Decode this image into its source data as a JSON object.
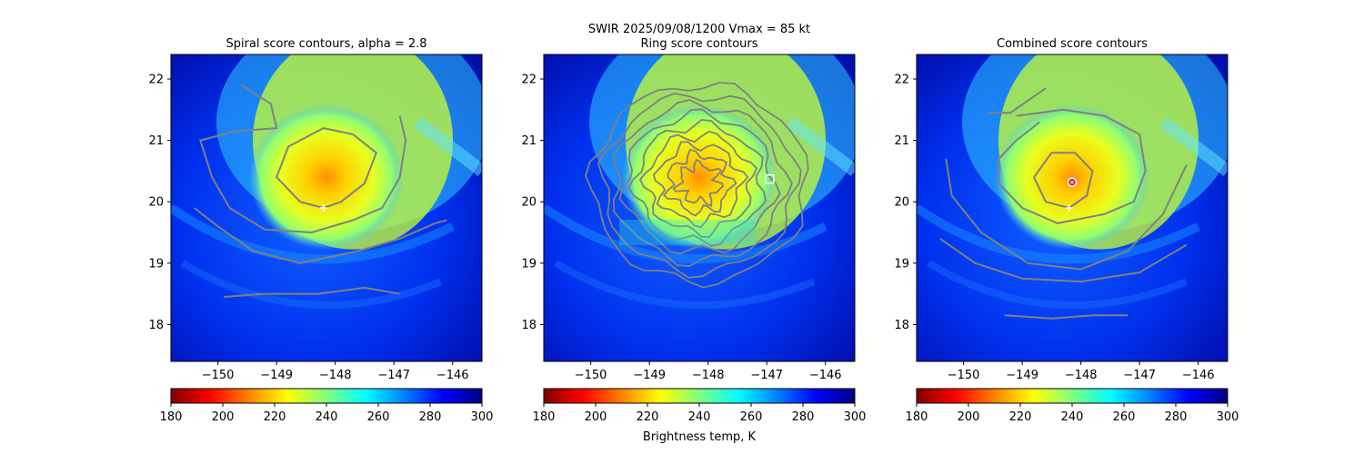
{
  "suptitle_line1": "SWIR  2025/09/08/1200    Vmax = 85 kt",
  "colorbar_label": "Brightness temp, K",
  "colormap": [
    "#800000",
    "#ff0000",
    "#ff8000",
    "#ffff00",
    "#80ff80",
    "#00ffff",
    "#0080ff",
    "#0000ff",
    "#000080"
  ],
  "contour_color": "#808080",
  "chart_data": [
    {
      "type": "heatmap",
      "title": "Spiral score contours, alpha =  2.8",
      "xlim": [
        -150.8,
        -145.5
      ],
      "ylim": [
        17.4,
        22.4
      ],
      "x_ticks": [
        -150,
        -149,
        -148,
        -147,
        -146
      ],
      "x_tick_labels": [
        "−150",
        "−149",
        "−148",
        "−147",
        "−146"
      ],
      "y_ticks": [
        18,
        19,
        20,
        21,
        22
      ],
      "y_tick_labels": [
        "18",
        "19",
        "20",
        "21",
        "22"
      ],
      "colorbar": {
        "range": [
          180,
          300
        ],
        "ticks": [
          180,
          200,
          220,
          240,
          260,
          280,
          300
        ]
      },
      "center_marker": {
        "symbol": "+",
        "lon": -148.2,
        "lat": 19.9
      }
    },
    {
      "type": "heatmap",
      "title": "Ring score contours",
      "xlim": [
        -150.8,
        -145.5
      ],
      "ylim": [
        17.4,
        22.4
      ],
      "x_ticks": [
        -150,
        -149,
        -148,
        -147,
        -146
      ],
      "x_tick_labels": [
        "−150",
        "−149",
        "−148",
        "−147",
        "−146"
      ],
      "y_ticks": [
        18,
        19,
        20,
        21,
        22
      ],
      "y_tick_labels": [
        "18",
        "19",
        "20",
        "21",
        "22"
      ],
      "colorbar": {
        "range": [
          180,
          300
        ],
        "ticks": [
          180,
          200,
          220,
          240,
          260,
          280,
          300
        ]
      },
      "center_marker": {
        "symbol": "square",
        "lon": -146.95,
        "lat": 20.37
      }
    },
    {
      "type": "heatmap",
      "title": "Combined score contours",
      "xlim": [
        -150.8,
        -145.5
      ],
      "ylim": [
        17.4,
        22.4
      ],
      "x_ticks": [
        -150,
        -149,
        -148,
        -147,
        -146
      ],
      "x_tick_labels": [
        "−150",
        "−149",
        "−148",
        "−147",
        "−146"
      ],
      "y_ticks": [
        18,
        19,
        20,
        21,
        22
      ],
      "y_tick_labels": [
        "18",
        "19",
        "20",
        "21",
        "22"
      ],
      "colorbar": {
        "range": [
          180,
          300
        ],
        "ticks": [
          180,
          200,
          220,
          240,
          260,
          280,
          300
        ]
      },
      "center_marker": {
        "symbol": "circle",
        "lon": -148.15,
        "lat": 20.32
      },
      "secondary_marker": {
        "symbol": "+",
        "lon": -148.2,
        "lat": 19.9
      }
    }
  ]
}
